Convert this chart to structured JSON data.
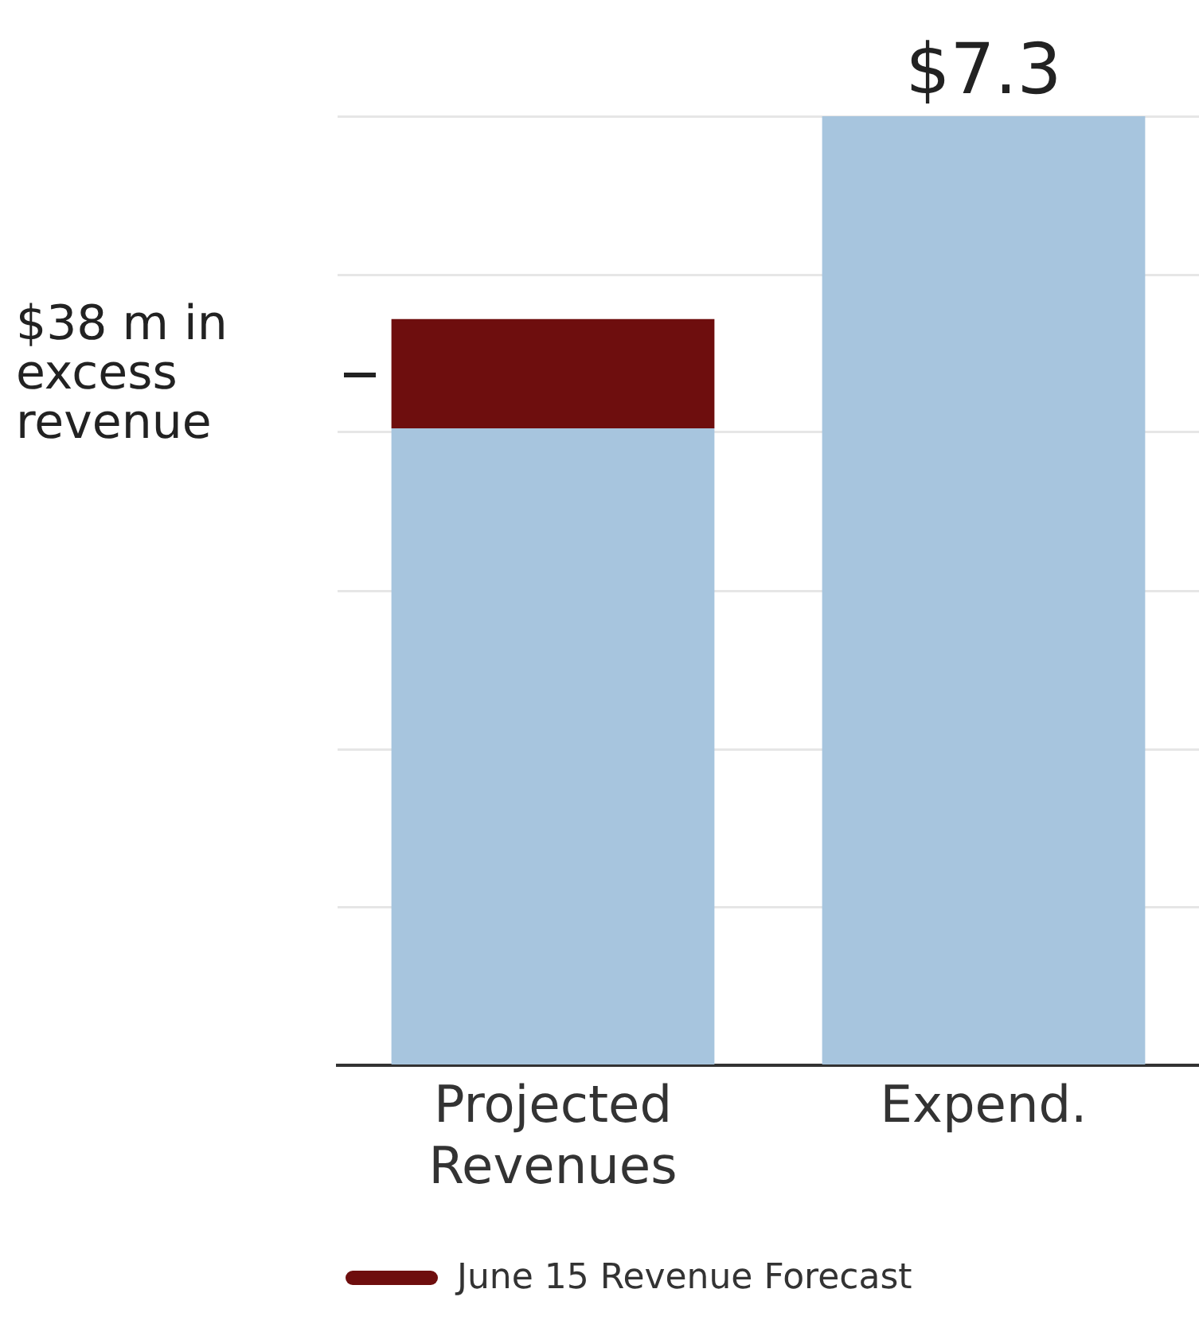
{
  "chart_data": {
    "type": "bar",
    "stacked": true,
    "categories": [
      "Projected Revenues",
      "Expend."
    ],
    "series": [
      {
        "color": "#a7c5de",
        "values": [
          4.9,
          7.3
        ],
        "value_labels": [
          null,
          "$7.3"
        ]
      },
      {
        "name": "June 15 Revenue Forecast",
        "color": "#6e0e0e",
        "values": [
          0.84,
          null
        ]
      }
    ],
    "ylim": [
      0,
      7.3
    ],
    "yticks": [
      0,
      {
        "value": 1.22,
        "label": null
      },
      {
        "value": 2.43,
        "label": null
      },
      {
        "value": 3.65,
        "label": null
      },
      {
        "value": 4.87,
        "label": null
      },
      {
        "value": 6.08,
        "label": null
      },
      {
        "value": 7.3,
        "label": null
      }
    ],
    "grid": "y",
    "tick_labels": "x",
    "legend": "bottom left",
    "annotations": [
      "$38 m in excess revenue"
    ]
  }
}
